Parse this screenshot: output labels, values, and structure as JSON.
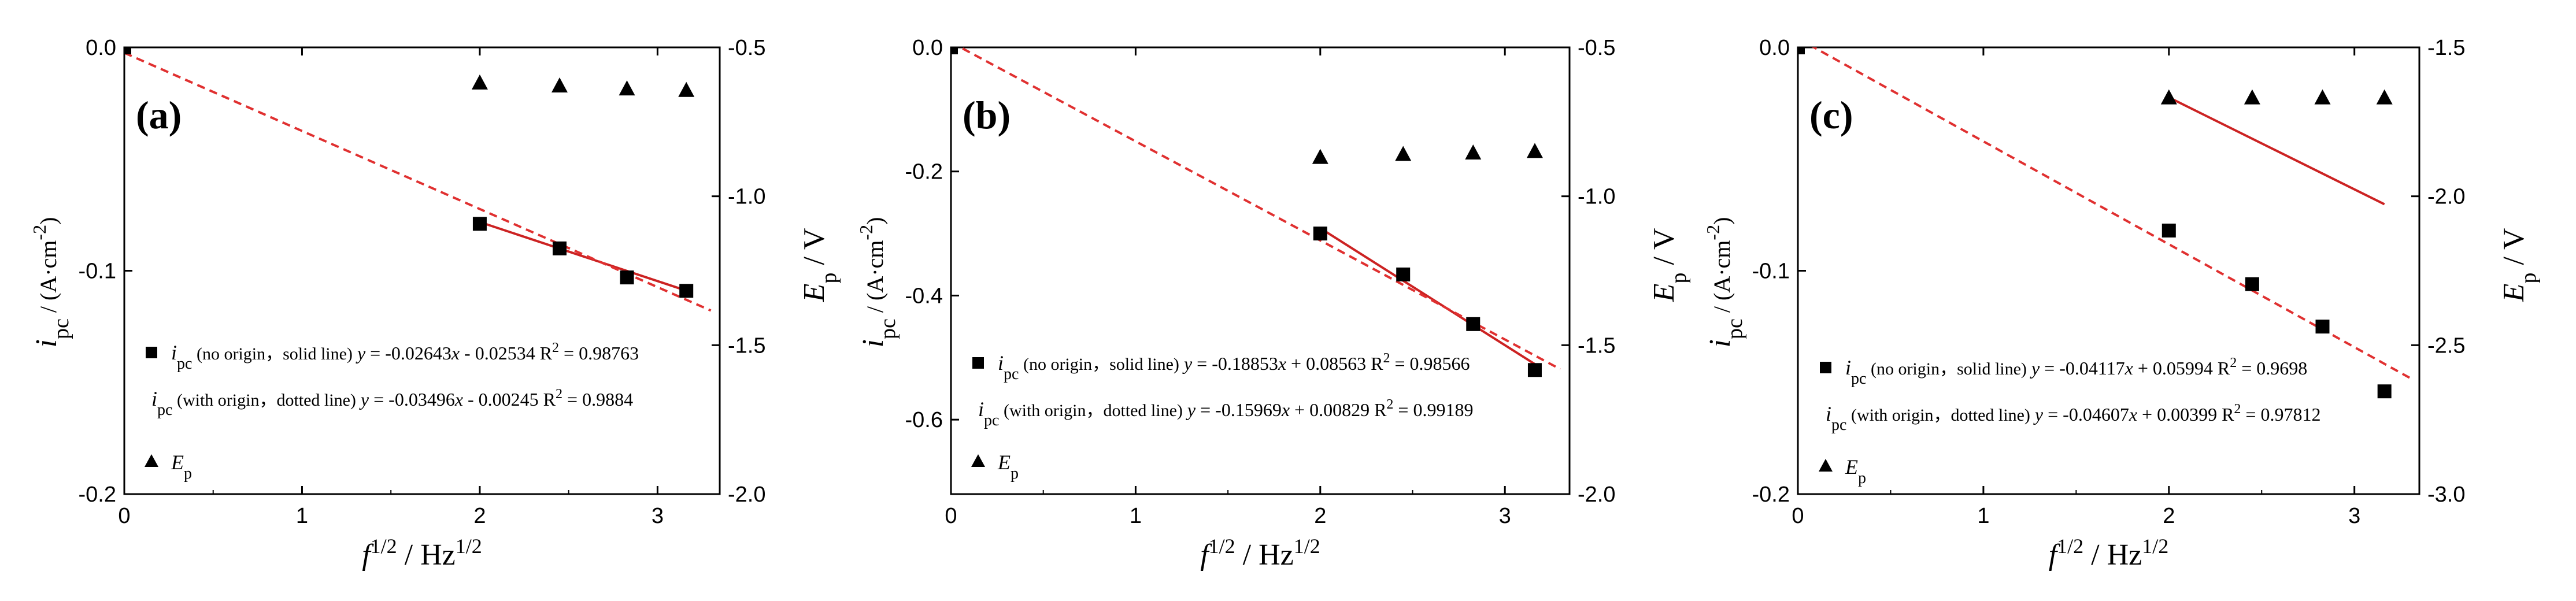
{
  "chart_data": [
    {
      "type": "scatter",
      "panel_label": "(a)",
      "xlabel": {
        "base": "f",
        "sup1": "1/2",
        "rest": " / Hz",
        "sup2": "1/2"
      },
      "ylabel_left": {
        "base": "i",
        "sub": "pc",
        "rest": " / (A·cm",
        "sup": "-2",
        "close": ")"
      },
      "ylabel_right": {
        "base": "E",
        "sub": "p",
        "rest": " / V"
      },
      "xlim": [
        0,
        3.35
      ],
      "x_ticks": [
        0,
        1,
        2,
        3
      ],
      "ylim_left": [
        -0.2,
        0.0
      ],
      "y_ticks_left": [
        0.0,
        -0.1,
        -0.2
      ],
      "y_tick_labels_left": [
        "0.0",
        "-0.1",
        "-0.2"
      ],
      "ylim_right": [
        -2.0,
        -0.5
      ],
      "y_ticks_right": [
        -0.5,
        -1.0,
        -1.5,
        -2.0
      ],
      "y_tick_labels_right": [
        "-0.5",
        "-1.0",
        "-1.5",
        "-2.0"
      ],
      "series": [
        {
          "name": "ipc",
          "marker": "square",
          "axis": "left",
          "x": [
            0,
            2.0,
            2.449,
            2.828,
            3.162
          ],
          "y": [
            0.0,
            -0.079,
            -0.09,
            -0.103,
            -0.109
          ]
        },
        {
          "name": "Ep",
          "marker": "triangle",
          "axis": "right",
          "x": [
            2.0,
            2.449,
            2.828,
            3.162
          ],
          "y": [
            -0.62,
            -0.63,
            -0.64,
            -0.645
          ]
        }
      ],
      "fits": [
        {
          "style": "solid",
          "color": "#cc2222",
          "slope": -0.02643,
          "intercept": -0.02534,
          "x_range": [
            2.0,
            3.162
          ]
        },
        {
          "style": "dashed",
          "color": "#e03030",
          "slope": -0.03496,
          "intercept": -0.00245,
          "x_range": [
            0,
            3.3
          ]
        }
      ],
      "legend": [
        {
          "symbol": "square",
          "label_base": "i",
          "label_sub": "pc",
          "label_rest": " (no origin，solid line)",
          "eq_prefix": " y",
          "eq": " = -0.02643",
          "eq_x": "x",
          "eq_rest": " - 0.02534 R",
          "eq_sup": "2",
          "eq_end": " = 0.98763"
        },
        {
          "symbol": "",
          "label_base": "i",
          "label_sub": "pc",
          "label_rest": " (with origin，dotted line)",
          "eq_prefix": " y",
          "eq": " = -0.03496",
          "eq_x": "x",
          "eq_rest": " - 0.00245 R",
          "eq_sup": "2",
          "eq_end": " = 0.9884"
        },
        {
          "symbol": "triangle",
          "label_base": "E",
          "label_sub": "p",
          "label_rest": "",
          "eq_prefix": "",
          "eq": "",
          "eq_x": "",
          "eq_rest": "",
          "eq_sup": "",
          "eq_end": ""
        }
      ]
    },
    {
      "type": "scatter",
      "panel_label": "(b)",
      "xlabel": {
        "base": "f",
        "sup1": "1/2",
        "rest": " / Hz",
        "sup2": "1/2"
      },
      "ylabel_left": {
        "base": "i",
        "sub": "pc",
        "rest": " / (A·cm",
        "sup": "-2",
        "close": ")"
      },
      "ylabel_right": {
        "base": "E",
        "sub": "p",
        "rest": " / V"
      },
      "xlim": [
        0,
        3.35
      ],
      "x_ticks": [
        0,
        1,
        2,
        3
      ],
      "ylim_left": [
        -0.72,
        0.0
      ],
      "y_ticks_left": [
        0.0,
        -0.2,
        -0.4,
        -0.6
      ],
      "y_tick_labels_left": [
        "0.0",
        "-0.2",
        "-0.4",
        "-0.6"
      ],
      "ylim_right": [
        -2.0,
        -0.5
      ],
      "y_ticks_right": [
        -0.5,
        -1.0,
        -1.5,
        -2.0
      ],
      "y_tick_labels_right": [
        "-0.5",
        "-1.0",
        "-1.5",
        "-2.0"
      ],
      "series": [
        {
          "name": "ipc",
          "marker": "square",
          "axis": "left",
          "x": [
            0,
            2.0,
            2.449,
            2.828,
            3.162
          ],
          "y": [
            0.0,
            -0.3,
            -0.366,
            -0.446,
            -0.52
          ]
        },
        {
          "name": "Ep",
          "marker": "triangle",
          "axis": "right",
          "x": [
            2.0,
            2.449,
            2.828,
            3.162
          ],
          "y": [
            -0.87,
            -0.86,
            -0.855,
            -0.85
          ]
        }
      ],
      "fits": [
        {
          "style": "solid",
          "color": "#cc2222",
          "slope": -0.18853,
          "intercept": 0.08563,
          "x_range": [
            2.0,
            3.162
          ]
        },
        {
          "style": "dashed",
          "color": "#e03030",
          "slope": -0.15969,
          "intercept": 0.00829,
          "x_range": [
            0,
            3.3
          ]
        }
      ],
      "legend": [
        {
          "symbol": "square",
          "label_base": "i",
          "label_sub": "pc",
          "label_rest": " (no origin，solid line)",
          "eq_prefix": " y",
          "eq": " = -0.18853",
          "eq_x": "x",
          "eq_rest": " + 0.08563 R",
          "eq_sup": "2",
          "eq_end": " = 0.98566"
        },
        {
          "symbol": "",
          "label_base": "i",
          "label_sub": "pc",
          "label_rest": " (with origin，dotted line)",
          "eq_prefix": " y",
          "eq": " = -0.15969",
          "eq_x": "x",
          "eq_rest": " + 0.00829 R",
          "eq_sup": "2",
          "eq_end": " = 0.99189"
        },
        {
          "symbol": "triangle",
          "label_base": "E",
          "label_sub": "p",
          "label_rest": "",
          "eq_prefix": "",
          "eq": "",
          "eq_x": "",
          "eq_rest": "",
          "eq_sup": "",
          "eq_end": ""
        }
      ]
    },
    {
      "type": "scatter",
      "panel_label": "(c)",
      "xlabel": {
        "base": "f",
        "sup1": "1/2",
        "rest": " / Hz",
        "sup2": "1/2"
      },
      "ylabel_left": {
        "base": "i",
        "sub": "pc",
        "rest": " / (A·cm",
        "sup": "-2",
        "close": ")"
      },
      "ylabel_right": {
        "base": "E",
        "sub": "p",
        "rest": " / V"
      },
      "xlim": [
        0,
        3.35
      ],
      "x_ticks": [
        0,
        1,
        2,
        3
      ],
      "ylim_left": [
        -0.2,
        0.0
      ],
      "y_ticks_left": [
        0.0,
        -0.1,
        -0.2
      ],
      "y_tick_labels_left": [
        "0.0",
        "-0.1",
        "-0.2"
      ],
      "ylim_right": [
        -3.0,
        -1.5
      ],
      "y_ticks_right": [
        -1.5,
        -2.0,
        -2.5,
        -3.0
      ],
      "y_tick_labels_right": [
        "-1.5",
        "-2.0",
        "-2.5",
        "-3.0"
      ],
      "series": [
        {
          "name": "ipc",
          "marker": "square",
          "axis": "left",
          "x": [
            0,
            2.0,
            2.449,
            2.828,
            3.162
          ],
          "y": [
            0.0,
            -0.082,
            -0.106,
            -0.125,
            -0.154
          ]
        },
        {
          "name": "Ep",
          "marker": "triangle",
          "axis": "right",
          "x": [
            2.0,
            2.449,
            2.828,
            3.162
          ],
          "y": [
            -1.67,
            -1.67,
            -1.67,
            -1.67
          ]
        }
      ],
      "fits": [
        {
          "style": "solid",
          "color": "#cc2222",
          "slope": -0.04117,
          "intercept": 0.05994,
          "x_range": [
            2.0,
            3.162
          ]
        },
        {
          "style": "dashed",
          "color": "#e03030",
          "slope": -0.04607,
          "intercept": 0.00399,
          "x_range": [
            0,
            3.3
          ]
        }
      ],
      "legend": [
        {
          "symbol": "square",
          "label_base": "i",
          "label_sub": "pc",
          "label_rest": " (no origin，solid line)",
          "eq_prefix": " y",
          "eq": " = -0.04117",
          "eq_x": "x",
          "eq_rest": " + 0.05994 R",
          "eq_sup": "2",
          "eq_end": " = 0.9698"
        },
        {
          "symbol": "",
          "label_base": "i",
          "label_sub": "pc",
          "label_rest": " (with origin，dotted line)",
          "eq_prefix": " y",
          "eq": " = -0.04607",
          "eq_x": "x",
          "eq_rest": " + 0.00399 R",
          "eq_sup": "2",
          "eq_end": " = 0.97812"
        },
        {
          "symbol": "triangle",
          "label_base": "E",
          "label_sub": "p",
          "label_rest": "",
          "eq_prefix": "",
          "eq": "",
          "eq_x": "",
          "eq_rest": "",
          "eq_sup": "",
          "eq_end": ""
        }
      ]
    }
  ]
}
